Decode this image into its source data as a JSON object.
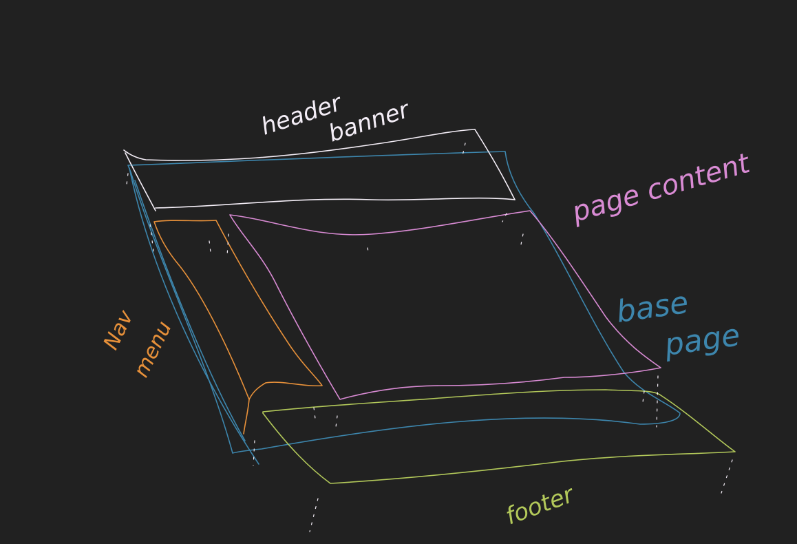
{
  "diagram": {
    "background": "#212121",
    "colors": {
      "header": "#f4eef7",
      "page_content": "#d98bd4",
      "base_page": "#3d86ad",
      "nav": "#e8913a",
      "footer": "#b3c95a"
    },
    "labels": {
      "header_line1": "header",
      "header_line2": "banner",
      "page_content": "page content",
      "base_page_line1": "base",
      "base_page_line2": "page",
      "nav_line1": "Nav",
      "nav_line2": "menu",
      "footer": "footer"
    }
  }
}
